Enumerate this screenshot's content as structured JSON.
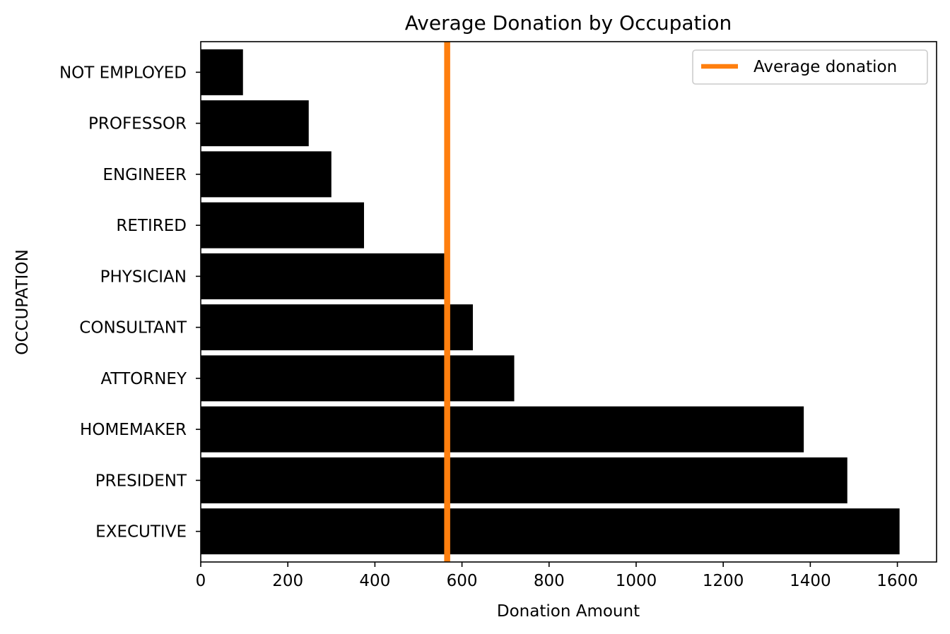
{
  "chart_data": {
    "type": "bar",
    "orientation": "horizontal",
    "title": "Average Donation by Occupation",
    "xlabel": "Donation Amount",
    "ylabel": "OCCUPATION",
    "categories": [
      "EXECUTIVE",
      "PRESIDENT",
      "HOMEMAKER",
      "ATTORNEY",
      "CONSULTANT",
      "PHYSICIAN",
      "RETIRED",
      "ENGINEER",
      "PROFESSOR",
      "NOT EMPLOYED"
    ],
    "values": [
      1605,
      1485,
      1385,
      720,
      625,
      560,
      375,
      300,
      248,
      97
    ],
    "xlim": [
      0,
      1690
    ],
    "xticks": [
      0,
      200,
      400,
      600,
      800,
      1000,
      1200,
      1400,
      1600
    ],
    "bar_color": "#000000",
    "reference_line": {
      "name": "Average donation",
      "value": 566,
      "color": "#ff7f0e"
    },
    "legend": {
      "position": "top-right",
      "entries": [
        "Average donation"
      ]
    },
    "grid": false
  }
}
